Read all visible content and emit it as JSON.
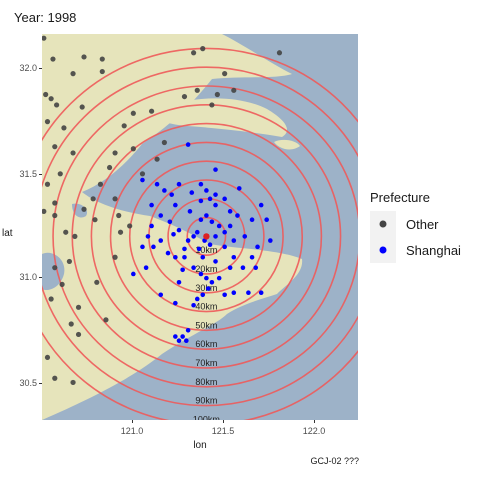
{
  "title": "Year: 1998",
  "caption": "GCJ-02 ???",
  "colors": {
    "other": "#444444",
    "shanghai": "#0000ff",
    "ring": "#ee5a5a",
    "water": "#9db2c8",
    "land": "#e6e4bb"
  },
  "chart_data": {
    "type": "scatter",
    "xlabel": "lon",
    "ylabel": "lat",
    "xlim": [
      120.55,
      122.28
    ],
    "ylim": [
      30.32,
      32.17
    ],
    "x_ticks": [
      "121.0",
      "121.5",
      "122.0"
    ],
    "y_ticks": [
      "32.0",
      "31.5",
      "31.0",
      "30.5"
    ],
    "center": {
      "lon": 121.45,
      "lat": 31.2
    },
    "ring_labels": [
      "10km",
      "20km",
      "30km",
      "40km",
      "50km",
      "60km",
      "70km",
      "80km",
      "90km",
      "100km"
    ],
    "legend": {
      "title": "Prefecture",
      "items": [
        "Other",
        "Shanghai"
      ]
    },
    "series": [
      {
        "name": "Other",
        "points": [
          [
            120.56,
            32.15
          ],
          [
            120.61,
            32.05
          ],
          [
            120.57,
            31.88
          ],
          [
            120.6,
            31.86
          ],
          [
            120.63,
            31.83
          ],
          [
            120.58,
            31.75
          ],
          [
            120.67,
            31.72
          ],
          [
            120.77,
            31.82
          ],
          [
            120.72,
            31.98
          ],
          [
            120.78,
            32.06
          ],
          [
            120.88,
            31.99
          ],
          [
            120.88,
            32.05
          ],
          [
            120.72,
            31.6
          ],
          [
            120.62,
            31.63
          ],
          [
            120.65,
            31.5
          ],
          [
            120.58,
            31.45
          ],
          [
            120.62,
            31.36
          ],
          [
            120.56,
            31.32
          ],
          [
            120.62,
            31.3
          ],
          [
            120.68,
            31.22
          ],
          [
            120.73,
            31.2
          ],
          [
            120.7,
            31.08
          ],
          [
            120.62,
            31.05
          ],
          [
            120.66,
            30.97
          ],
          [
            120.6,
            30.9
          ],
          [
            120.78,
            31.33
          ],
          [
            120.83,
            31.38
          ],
          [
            120.87,
            31.45
          ],
          [
            120.95,
            31.38
          ],
          [
            120.97,
            31.3
          ],
          [
            120.98,
            31.22
          ],
          [
            120.95,
            31.1
          ],
          [
            120.85,
            30.98
          ],
          [
            120.75,
            30.86
          ],
          [
            120.71,
            30.78
          ],
          [
            120.75,
            30.73
          ],
          [
            120.58,
            30.62
          ],
          [
            120.62,
            30.52
          ],
          [
            120.72,
            30.5
          ],
          [
            120.9,
            30.8
          ],
          [
            121.03,
            31.25
          ],
          [
            121.1,
            31.5
          ],
          [
            121.18,
            31.57
          ],
          [
            121.22,
            31.65
          ],
          [
            121.05,
            31.62
          ],
          [
            121.0,
            31.73
          ],
          [
            121.05,
            31.79
          ],
          [
            121.15,
            31.8
          ],
          [
            120.95,
            31.6
          ],
          [
            121.33,
            31.87
          ],
          [
            121.4,
            31.9
          ],
          [
            121.51,
            31.88
          ],
          [
            121.6,
            31.9
          ],
          [
            121.55,
            31.98
          ],
          [
            121.85,
            32.08
          ],
          [
            121.38,
            32.08
          ],
          [
            121.43,
            32.1
          ],
          [
            121.48,
            31.83
          ],
          [
            120.92,
            31.53
          ],
          [
            120.84,
            31.28
          ]
        ]
      },
      {
        "name": "Shanghai",
        "points": [
          [
            121.1,
            31.47
          ],
          [
            121.18,
            31.45
          ],
          [
            121.22,
            31.42
          ],
          [
            121.26,
            31.4
          ],
          [
            121.3,
            31.45
          ],
          [
            121.37,
            31.41
          ],
          [
            121.42,
            31.45
          ],
          [
            121.45,
            31.42
          ],
          [
            121.47,
            31.38
          ],
          [
            121.5,
            31.35
          ],
          [
            121.55,
            31.38
          ],
          [
            121.35,
            31.64
          ],
          [
            121.5,
            31.52
          ],
          [
            121.63,
            31.43
          ],
          [
            121.62,
            31.3
          ],
          [
            121.7,
            31.28
          ],
          [
            121.75,
            31.35
          ],
          [
            121.78,
            31.28
          ],
          [
            121.8,
            31.18
          ],
          [
            121.73,
            31.15
          ],
          [
            121.7,
            31.1
          ],
          [
            121.72,
            31.05
          ],
          [
            121.65,
            31.05
          ],
          [
            121.6,
            31.1
          ],
          [
            121.55,
            31.22
          ],
          [
            121.52,
            31.25
          ],
          [
            121.48,
            31.27
          ],
          [
            121.45,
            31.3
          ],
          [
            121.42,
            31.28
          ],
          [
            121.4,
            31.22
          ],
          [
            121.38,
            31.2
          ],
          [
            121.35,
            31.18
          ],
          [
            121.33,
            31.14
          ],
          [
            121.3,
            31.23
          ],
          [
            121.25,
            31.27
          ],
          [
            121.2,
            31.3
          ],
          [
            121.15,
            31.25
          ],
          [
            121.13,
            31.2
          ],
          [
            121.16,
            31.15
          ],
          [
            121.2,
            31.18
          ],
          [
            121.24,
            31.12
          ],
          [
            121.28,
            31.1
          ],
          [
            121.33,
            31.1
          ],
          [
            121.38,
            31.05
          ],
          [
            121.42,
            31.02
          ],
          [
            121.45,
            31.0
          ],
          [
            121.48,
            30.98
          ],
          [
            121.46,
            30.95
          ],
          [
            121.43,
            30.92
          ],
          [
            121.4,
            30.9
          ],
          [
            121.38,
            30.87
          ],
          [
            121.35,
            30.75
          ],
          [
            121.32,
            30.72
          ],
          [
            121.3,
            30.7
          ],
          [
            121.28,
            30.72
          ],
          [
            121.34,
            30.7
          ],
          [
            121.55,
            30.92
          ],
          [
            121.6,
            30.93
          ],
          [
            121.68,
            30.93
          ],
          [
            121.75,
            30.93
          ],
          [
            121.52,
            31.0
          ],
          [
            121.58,
            31.05
          ],
          [
            121.5,
            31.08
          ],
          [
            121.55,
            31.15
          ],
          [
            121.6,
            31.18
          ],
          [
            121.58,
            31.25
          ],
          [
            121.5,
            31.2
          ],
          [
            121.47,
            31.16
          ],
          [
            121.44,
            31.18
          ],
          [
            121.41,
            31.14
          ],
          [
            121.1,
            31.15
          ],
          [
            121.05,
            31.02
          ],
          [
            121.12,
            31.05
          ],
          [
            121.2,
            30.92
          ],
          [
            121.28,
            30.88
          ],
          [
            121.3,
            30.98
          ],
          [
            121.36,
            31.32
          ],
          [
            121.28,
            31.35
          ],
          [
            121.15,
            31.35
          ],
          [
            121.58,
            31.32
          ],
          [
            121.66,
            31.2
          ],
          [
            121.5,
            31.4
          ],
          [
            121.42,
            31.37
          ],
          [
            121.32,
            31.04
          ],
          [
            121.27,
            31.21
          ],
          [
            121.43,
            31.1
          ]
        ]
      }
    ]
  }
}
